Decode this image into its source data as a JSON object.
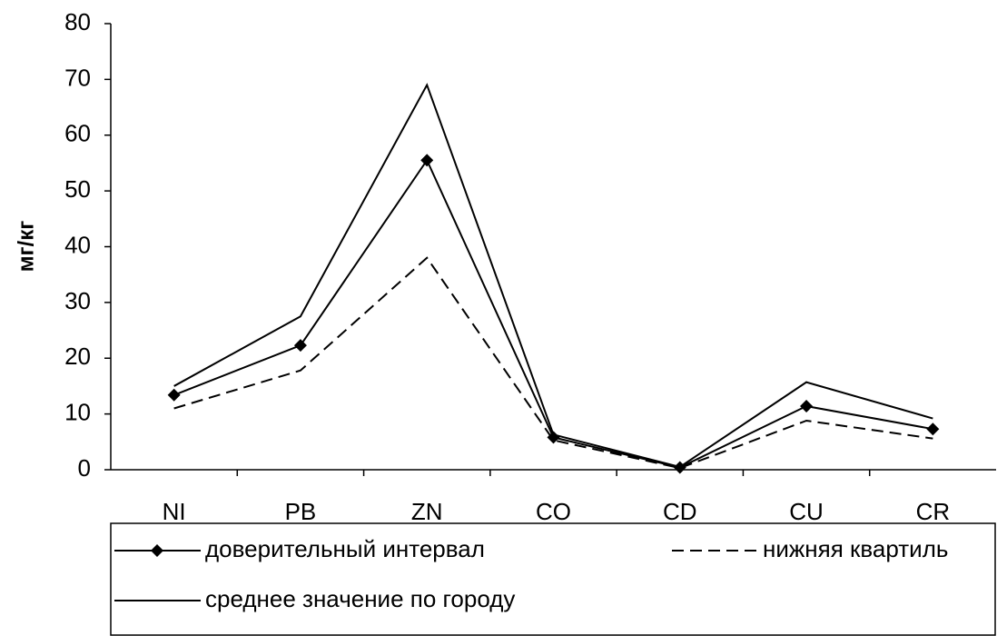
{
  "chart_data": {
    "type": "line",
    "y_label": "мг/кг",
    "categories": [
      "NI",
      "PB",
      "ZN",
      "CO",
      "CD",
      "CU",
      "CR"
    ],
    "series": [
      {
        "name": "доверительный интервал",
        "color": "#000000",
        "marker": "diamond",
        "dash": "solid",
        "values": [
          13.4,
          22.3,
          55.5,
          5.8,
          0.4,
          11.4,
          7.3
        ]
      },
      {
        "name": "нижняя квартиль",
        "color": "#000000",
        "marker": "none",
        "dash": "dashed",
        "values": [
          11,
          17.8,
          38,
          5.3,
          0.3,
          8.8,
          5.6
        ]
      },
      {
        "name": "среднее значение по городу",
        "color": "#000000",
        "marker": "none",
        "dash": "solid",
        "values": [
          15,
          27.5,
          69,
          6.3,
          0.5,
          15.7,
          9.2
        ]
      }
    ],
    "ylim": [
      0,
      80
    ],
    "yticks": [
      0,
      10,
      20,
      30,
      40,
      50,
      60,
      70,
      80
    ],
    "grid": false,
    "legend": "bottom"
  }
}
